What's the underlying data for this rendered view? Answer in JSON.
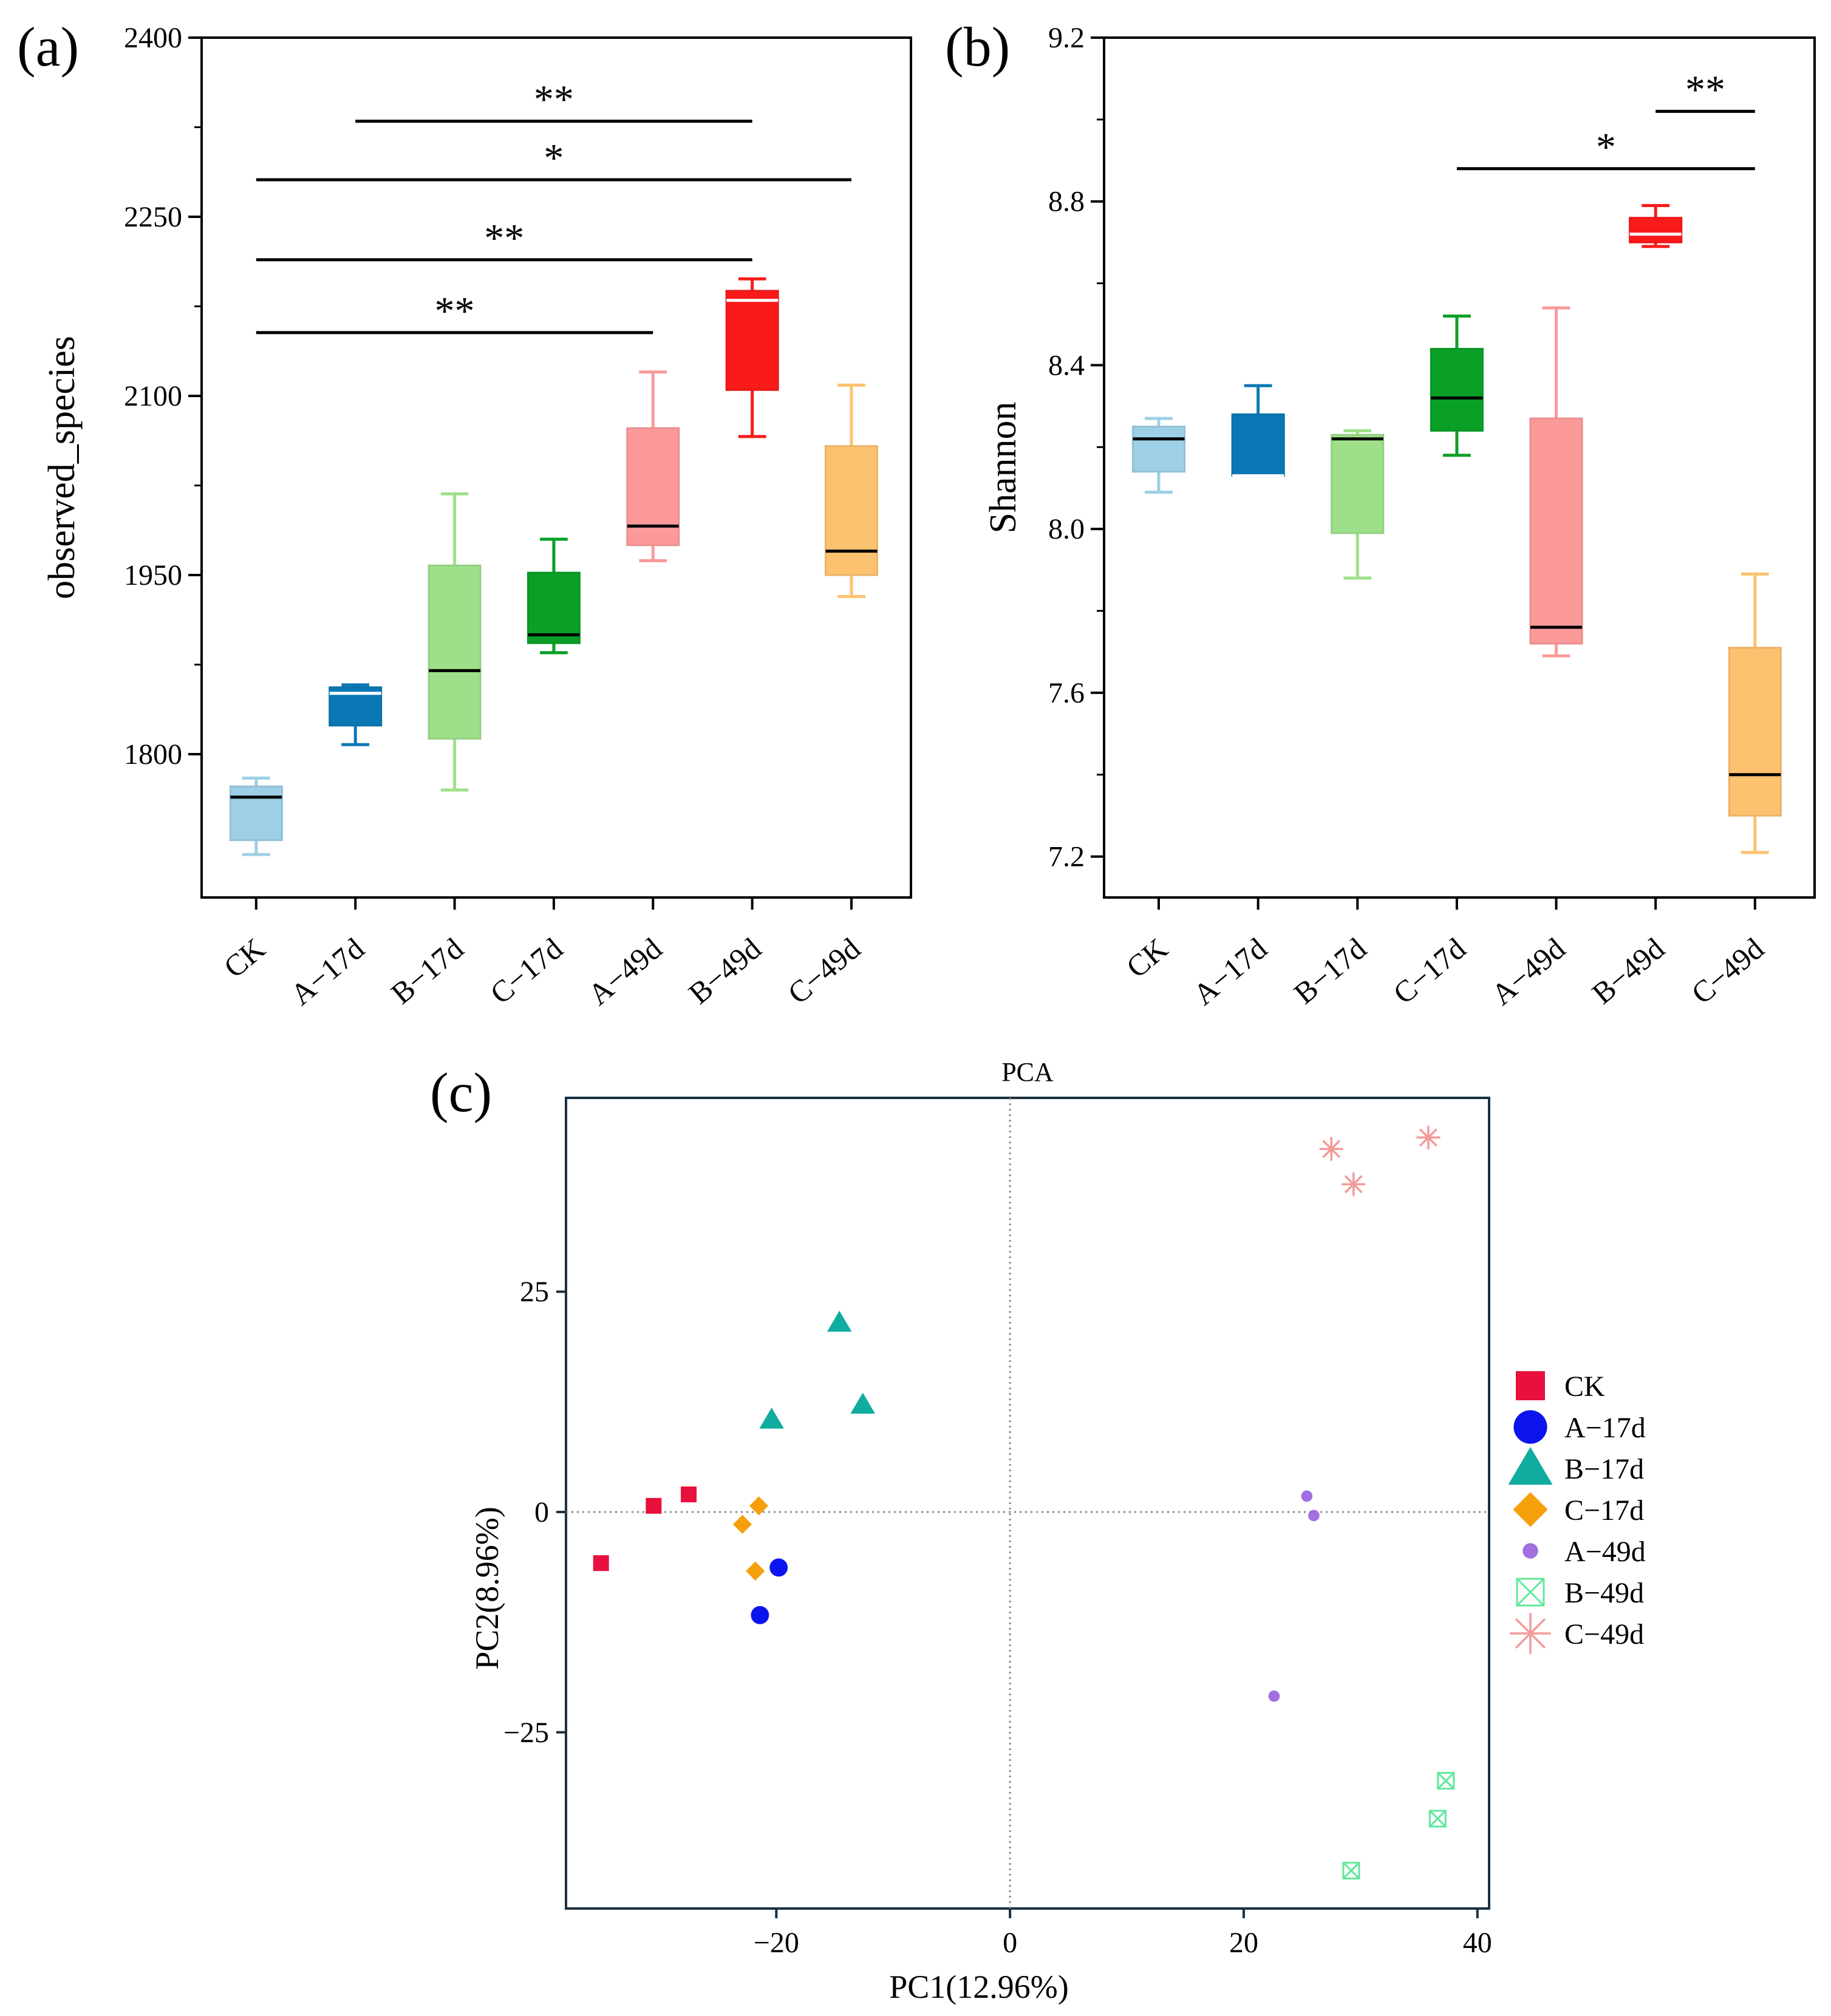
{
  "chart_data": [
    {
      "panel_label": "(a)",
      "type": "box",
      "title": "",
      "xlabel": "",
      "ylabel": "observed_species",
      "ylim": [
        1680,
        2400
      ],
      "yticks": [
        "1800",
        "1950",
        "2100",
        "2250",
        "2400"
      ],
      "categories": [
        "CK",
        "A−17d",
        "B−17d",
        "C−17d",
        "A−49d",
        "B−49d",
        "C−49d"
      ],
      "boxes": [
        {
          "name": "CK",
          "color": "#9dd0e6",
          "whisker_low": 1716,
          "q1": 1728,
          "median": 1764,
          "q3": 1773,
          "whisker_high": 1780
        },
        {
          "name": "A−17d",
          "color": "#0a78b4",
          "whisker_low": 1808,
          "q1": 1824,
          "median": 1851,
          "q3": 1856,
          "whisker_high": 1858
        },
        {
          "name": "B−17d",
          "color": "#9ee08a",
          "whisker_low": 1770,
          "q1": 1813,
          "median": 1870,
          "q3": 1958,
          "whisker_high": 2018
        },
        {
          "name": "C−17d",
          "color": "#0aa028",
          "whisker_low": 1885,
          "q1": 1893,
          "median": 1900,
          "q3": 1952,
          "whisker_high": 1980
        },
        {
          "name": "A−49d",
          "color": "#fc9a9a",
          "whisker_low": 1962,
          "q1": 1975,
          "median": 1991,
          "q3": 2073,
          "whisker_high": 2120
        },
        {
          "name": "B−49d",
          "color": "#fa1a1a",
          "whisker_low": 2066,
          "q1": 2105,
          "median": 2180,
          "q3": 2188,
          "whisker_high": 2198
        },
        {
          "name": "C−49d",
          "color": "#fcc270",
          "whisker_low": 1932,
          "q1": 1950,
          "median": 1970,
          "q3": 2058,
          "whisker_high": 2109
        }
      ],
      "significance": [
        {
          "from": "A−17d",
          "to": "B−49d",
          "label": "**",
          "y": 2330
        },
        {
          "from": "CK",
          "to": "C−49d",
          "label": "*",
          "y": 2281
        },
        {
          "from": "CK",
          "to": "B−49d",
          "label": "**",
          "y": 2214
        },
        {
          "from": "CK",
          "to": "A−49d",
          "label": "**",
          "y": 2153
        }
      ]
    },
    {
      "panel_label": "(b)",
      "type": "box",
      "title": "",
      "xlabel": "",
      "ylabel": "Shannon",
      "ylim": [
        7.1,
        9.2
      ],
      "yticks": [
        "7.2",
        "7.6",
        "8.0",
        "8.4",
        "8.8",
        "9.2"
      ],
      "categories": [
        "CK",
        "A−17d",
        "B−17d",
        "C−17d",
        "A−49d",
        "B−49d",
        "C−49d"
      ],
      "boxes": [
        {
          "name": "CK",
          "color": "#9dd0e6",
          "whisker_low": 8.09,
          "q1": 8.14,
          "median": 8.22,
          "q3": 8.25,
          "whisker_high": 8.27
        },
        {
          "name": "A−17d",
          "color": "#0a78b4",
          "whisker_low": 8.13,
          "q1": 8.13,
          "median": 8.13,
          "q3": 8.28,
          "whisker_high": 8.35
        },
        {
          "name": "B−17d",
          "color": "#9ee08a",
          "whisker_low": 7.88,
          "q1": 7.99,
          "median": 8.22,
          "q3": 8.23,
          "whisker_high": 8.24
        },
        {
          "name": "C−17d",
          "color": "#0aa028",
          "whisker_low": 8.18,
          "q1": 8.24,
          "median": 8.32,
          "q3": 8.44,
          "whisker_high": 8.52
        },
        {
          "name": "A−49d",
          "color": "#fc9a9a",
          "whisker_low": 7.69,
          "q1": 7.72,
          "median": 7.76,
          "q3": 8.27,
          "whisker_high": 8.54
        },
        {
          "name": "B−49d",
          "color": "#fa1a1a",
          "whisker_low": 8.69,
          "q1": 8.7,
          "median": 8.72,
          "q3": 8.76,
          "whisker_high": 8.79
        },
        {
          "name": "C−49d",
          "color": "#fcc270",
          "whisker_low": 7.21,
          "q1": 7.3,
          "median": 7.4,
          "q3": 7.71,
          "whisker_high": 7.89
        }
      ],
      "significance": [
        {
          "from": "B−49d",
          "to": "C−49d",
          "label": "**",
          "y": 9.02
        },
        {
          "from": "C−17d",
          "to": "C−49d",
          "label": "*",
          "y": 8.88
        }
      ]
    },
    {
      "panel_label": "(c)",
      "type": "scatter",
      "title": "PCA",
      "xlabel": "PC1(12.96%)",
      "ylabel": "PC2(8.96%)",
      "xlim": [
        -38,
        41
      ],
      "ylim": [
        -45,
        47
      ],
      "xticks": [
        {
          "value": -20,
          "label": "−20"
        },
        {
          "value": 0,
          "label": "0"
        },
        {
          "value": 20,
          "label": "20"
        },
        {
          "value": 40,
          "label": "40"
        }
      ],
      "yticks": [
        {
          "value": -25,
          "label": "−25"
        },
        {
          "value": 0,
          "label": "0"
        },
        {
          "value": 25,
          "label": "25"
        }
      ],
      "reference_lines": {
        "x": 0,
        "y": 0,
        "style": "dotted"
      },
      "series": [
        {
          "name": "CK",
          "marker": "square",
          "color": "#e8103c",
          "points": [
            [
              -30.5,
              0.7
            ],
            [
              -27.5,
              2.0
            ],
            [
              -35,
              -5.8
            ]
          ]
        },
        {
          "name": "A−17d",
          "marker": "circle",
          "color": "#0c14ee",
          "points": [
            [
              -19.8,
              -6.3
            ],
            [
              -21.4,
              -11.7
            ]
          ]
        },
        {
          "name": "B−17d",
          "marker": "triangle",
          "color": "#10aca0",
          "points": [
            [
              -14.6,
              21.5
            ],
            [
              -12.6,
              12.2
            ],
            [
              -20.4,
              10.5
            ]
          ]
        },
        {
          "name": "C−17d",
          "marker": "diamond",
          "color": "#f5a00a",
          "points": [
            [
              -21.5,
              0.7
            ],
            [
              -22.9,
              -1.4
            ],
            [
              -21.8,
              -6.7
            ]
          ]
        },
        {
          "name": "A−49d",
          "marker": "small-circle",
          "color": "#a070e0",
          "points": [
            [
              25.4,
              1.8
            ],
            [
              26.0,
              -0.4
            ],
            [
              22.6,
              -20.9
            ]
          ]
        },
        {
          "name": "B−49d",
          "marker": "boxed-x",
          "color": "#60e89c",
          "points": [
            [
              37.3,
              -30.5
            ],
            [
              36.6,
              -34.8
            ],
            [
              29.2,
              -40.7
            ]
          ]
        },
        {
          "name": "C−49d",
          "marker": "asterisk",
          "color": "#f49a9a",
          "points": [
            [
              27.5,
              41.2
            ],
            [
              29.4,
              37.2
            ],
            [
              35.8,
              42.5
            ]
          ]
        }
      ],
      "legend_position": "right"
    }
  ]
}
